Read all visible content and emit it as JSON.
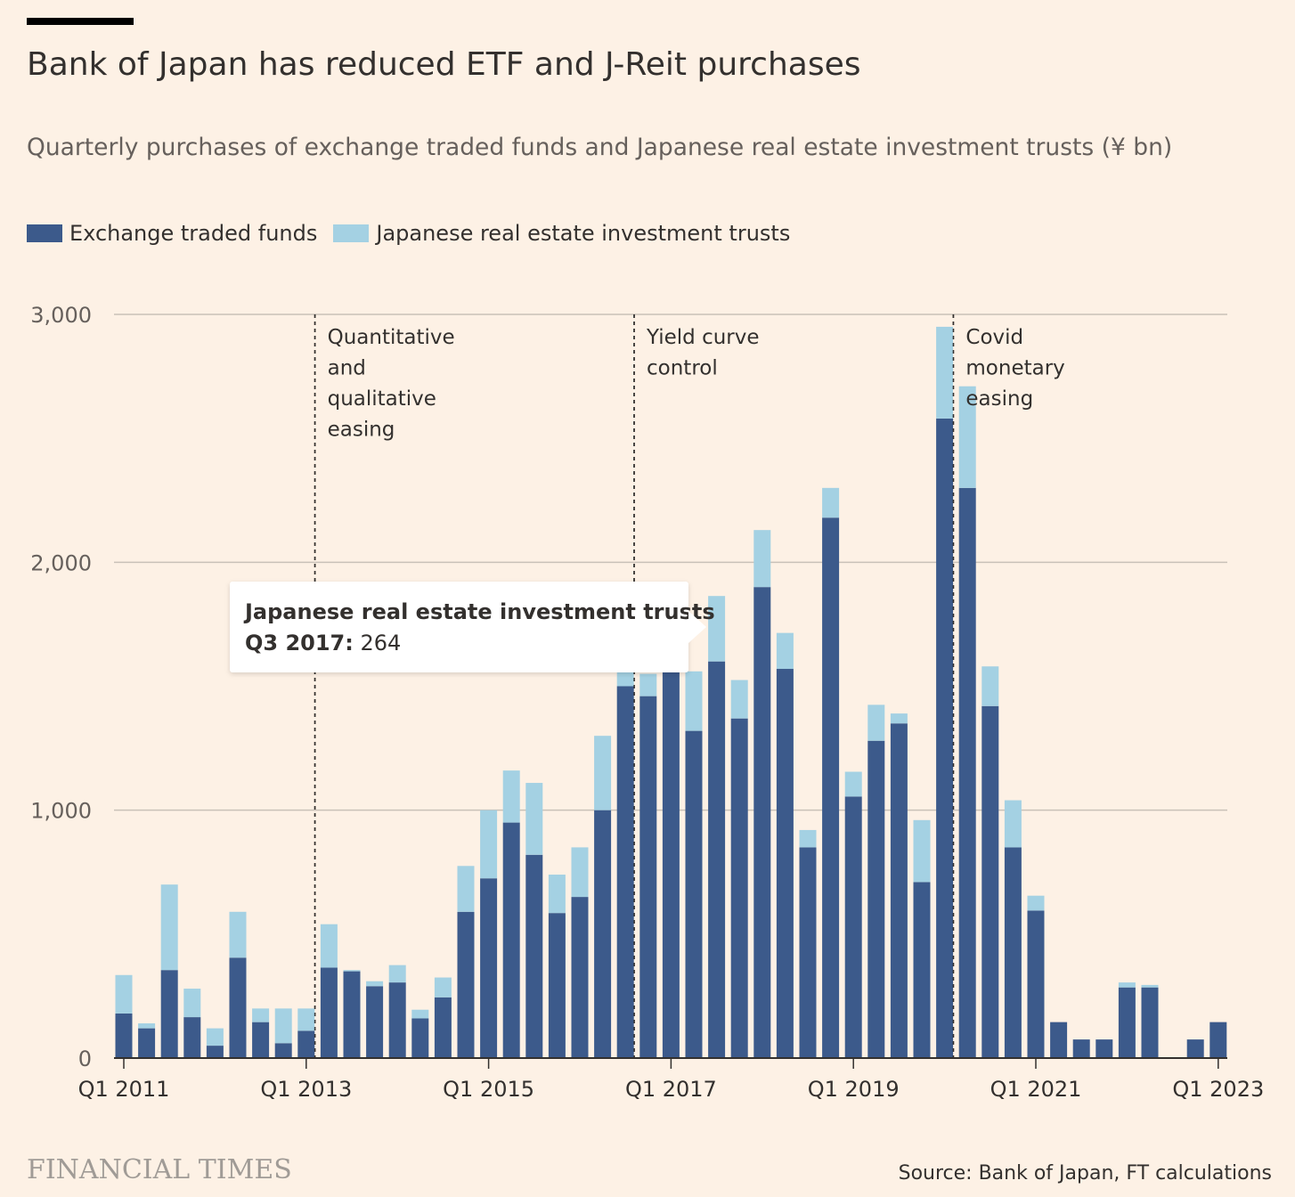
{
  "title": "Bank of Japan has reduced ETF and J-Reit purchases",
  "subtitle": "Quarterly purchases of exchange traded funds and Japanese real estate investment trusts (¥ bn)",
  "legend": {
    "etf_label": "Exchange traded funds",
    "jreit_label": "Japanese real estate investment trusts"
  },
  "colors": {
    "etf": "#3c5a8b",
    "jreit": "#a4d1e3",
    "background": "#fdf1e5",
    "gridline": "#c9c1b8"
  },
  "tooltip": {
    "series": "Japanese real estate investment trusts",
    "period": "Q3 2017:",
    "value": "264"
  },
  "footer": {
    "brand": "FINANCIAL TIMES",
    "source": "Source: Bank of Japan, FT calculations"
  },
  "chart_data": {
    "type": "bar",
    "stacked": true,
    "ylim": [
      0,
      3000
    ],
    "yticks": [
      0,
      1000,
      2000,
      3000
    ],
    "ytick_labels": [
      "0",
      "1,000",
      "2,000",
      "3,000"
    ],
    "xtick_labels": [
      "Q1 2011",
      "Q1 2013",
      "Q1 2015",
      "Q1 2017",
      "Q1 2019",
      "Q1 2021",
      "Q1 2023"
    ],
    "xtick_indices": [
      0,
      8,
      16,
      24,
      32,
      40,
      48
    ],
    "categories": [
      "Q1 2011",
      "Q2 2011",
      "Q3 2011",
      "Q4 2011",
      "Q1 2012",
      "Q2 2012",
      "Q3 2012",
      "Q4 2012",
      "Q1 2013",
      "Q2 2013",
      "Q3 2013",
      "Q4 2013",
      "Q1 2014",
      "Q2 2014",
      "Q3 2014",
      "Q4 2014",
      "Q1 2015",
      "Q2 2015",
      "Q3 2015",
      "Q4 2015",
      "Q1 2016",
      "Q2 2016",
      "Q3 2016",
      "Q4 2016",
      "Q1 2017",
      "Q2 2017",
      "Q3 2017",
      "Q4 2017",
      "Q1 2018",
      "Q2 2018",
      "Q3 2018",
      "Q4 2018",
      "Q1 2019",
      "Q2 2019",
      "Q3 2019",
      "Q4 2019",
      "Q1 2020",
      "Q2 2020",
      "Q3 2020",
      "Q4 2020",
      "Q1 2021",
      "Q2 2021",
      "Q3 2021",
      "Q4 2021",
      "Q1 2022",
      "Q2 2022",
      "Q3 2022",
      "Q4 2022",
      "Q1 2023"
    ],
    "series": [
      {
        "name": "Exchange traded funds",
        "values": [
          180,
          120,
          355,
          165,
          50,
          405,
          145,
          60,
          110,
          365,
          350,
          290,
          305,
          160,
          245,
          590,
          725,
          950,
          820,
          585,
          650,
          1000,
          1500,
          1460,
          1560,
          1320,
          1600,
          1370,
          1900,
          1570,
          850,
          2180,
          1055,
          1280,
          1350,
          710,
          2580,
          2300,
          1420,
          850,
          595,
          145,
          75,
          75,
          285,
          285,
          0,
          75,
          145
        ]
      },
      {
        "name": "Japanese real estate investment trusts",
        "values": [
          155,
          20,
          345,
          115,
          70,
          185,
          55,
          140,
          90,
          175,
          5,
          20,
          70,
          35,
          80,
          185,
          275,
          210,
          290,
          155,
          200,
          300,
          220,
          90,
          180,
          240,
          264,
          155,
          230,
          145,
          70,
          120,
          100,
          145,
          40,
          250,
          370,
          410,
          160,
          190,
          60,
          0,
          0,
          0,
          20,
          10,
          0,
          0,
          0
        ]
      }
    ],
    "annotations": [
      {
        "after_index": 8,
        "text": [
          "Quantitative",
          "and",
          "qualitative",
          "easing"
        ]
      },
      {
        "after_index": 22,
        "text": [
          "Yield curve",
          "control"
        ]
      },
      {
        "after_index": 36,
        "text": [
          "Covid",
          "monetary",
          "easing"
        ]
      }
    ]
  }
}
